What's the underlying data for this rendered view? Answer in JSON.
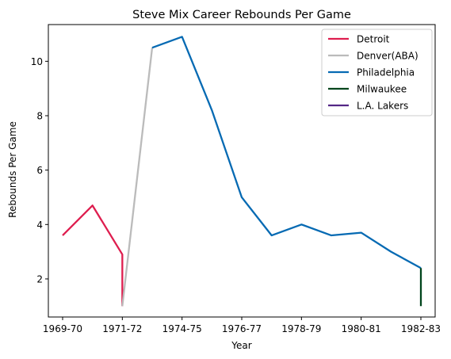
{
  "chart_data": {
    "type": "line",
    "title": "Steve Mix Career Rebounds Per Game",
    "xlabel": "Year",
    "ylabel": "Rebounds Per Game",
    "xticks": [
      "1969-70",
      "1971-72",
      "1974-75",
      "1976-77",
      "1978-79",
      "1980-81",
      "1982-83"
    ],
    "xtick_index": [
      0,
      2,
      4,
      6,
      8,
      10,
      12
    ],
    "ylim": [
      0.6,
      11.35
    ],
    "yticks": [
      2,
      4,
      6,
      8,
      10
    ],
    "legend_position": "upper right",
    "series": [
      {
        "name": "Detroit",
        "color": "#de1e4f",
        "points": [
          [
            0,
            3.6
          ],
          [
            1,
            4.7
          ],
          [
            2,
            2.9
          ],
          [
            2,
            1.0
          ]
        ]
      },
      {
        "name": "Denver(ABA)",
        "color": "#bbbbbb",
        "points": [
          [
            2,
            1.0
          ],
          [
            3,
            10.5
          ]
        ]
      },
      {
        "name": "Philadelphia",
        "color": "#066ab3",
        "points": [
          [
            3,
            10.5
          ],
          [
            4,
            10.9
          ],
          [
            5,
            8.2
          ],
          [
            6,
            5.0
          ],
          [
            7,
            3.6
          ],
          [
            8,
            4.0
          ],
          [
            9,
            3.6
          ],
          [
            10,
            3.7
          ],
          [
            11,
            3.0
          ],
          [
            12,
            2.4
          ]
        ]
      },
      {
        "name": "Milwaukee",
        "color": "#00451c",
        "points": [
          [
            12,
            2.4
          ],
          [
            12,
            1.0
          ]
        ]
      },
      {
        "name": "L.A. Lakers",
        "color": "#542786",
        "points": []
      }
    ]
  }
}
